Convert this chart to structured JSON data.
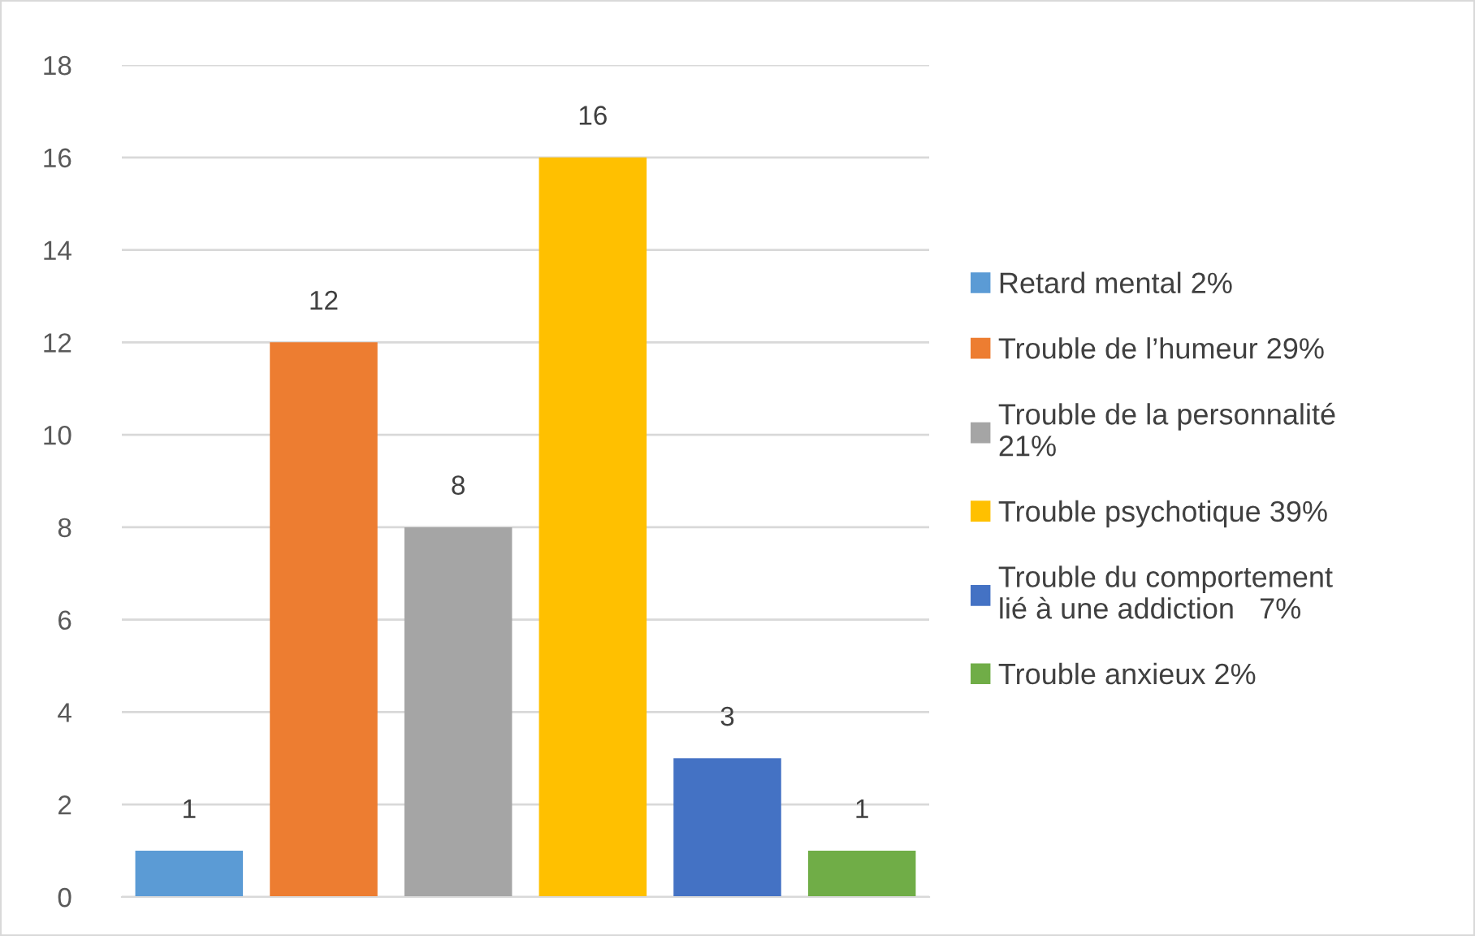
{
  "chart_data": {
    "type": "bar",
    "categories": [
      null,
      null,
      null,
      null,
      null,
      null
    ],
    "series": [
      {
        "name": "Retard mental 2%",
        "color": "#5b9bd5",
        "values": [
          1,
          null,
          null,
          null,
          null,
          null
        ]
      },
      {
        "name": "Trouble de l’humeur 29%",
        "color": "#ed7d31",
        "values": [
          null,
          12,
          null,
          null,
          null,
          null
        ]
      },
      {
        "name": "Trouble de la personnalité\n21%",
        "color": "#a5a5a5",
        "values": [
          null,
          null,
          8,
          null,
          null,
          null
        ]
      },
      {
        "name": "Trouble psychotique 39%",
        "color": "#ffc000",
        "values": [
          null,
          null,
          null,
          16,
          null,
          null
        ]
      },
      {
        "name": "Trouble du comportement\nlié à une addiction   7%",
        "color": "#4472c4",
        "values": [
          null,
          null,
          null,
          null,
          3,
          null
        ]
      },
      {
        "name": "Trouble anxieux 2%",
        "color": "#70ad47",
        "values": [
          null,
          null,
          null,
          null,
          null,
          1
        ]
      }
    ],
    "ylim": [
      0,
      18
    ],
    "yticks": [
      0,
      2,
      4,
      6,
      8,
      10,
      12,
      14,
      16,
      18
    ],
    "grid": "y",
    "legend": "right",
    "data_labels": true
  }
}
